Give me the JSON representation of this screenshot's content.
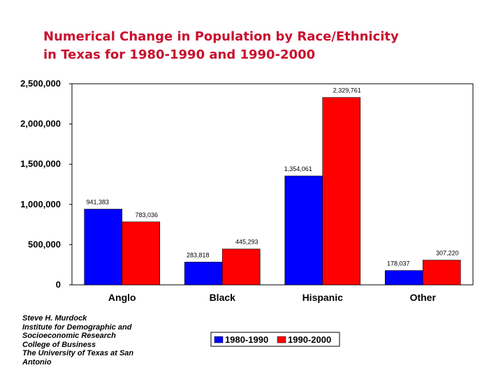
{
  "title_lines": [
    "Numerical Change in Population by Race/Ethnicity",
    "in Texas for 1980-1990 and 1990-2000"
  ],
  "credit_lines": [
    "Steve H. Murdock",
    "Institute for Demographic and",
    "Socioeconomic Research",
    "College of Business",
    "The University of Texas at San",
    "Antonio"
  ],
  "chart_data": {
    "type": "bar",
    "title": "Numerical Change in Population by Race/Ethnicity in Texas for 1980-1990 and 1990-2000",
    "categories": [
      "Anglo",
      "Black",
      "Hispanic",
      "Other"
    ],
    "series": [
      {
        "name": "1980-1990",
        "color": "#0000ff",
        "values": [
          941383,
          283818,
          1354061,
          178037
        ],
        "labels": [
          "941,383",
          "283,818",
          "1,354,061",
          "178,037"
        ]
      },
      {
        "name": "1990-2000",
        "color": "#ff0000",
        "values": [
          783036,
          445293,
          2329761,
          307220
        ],
        "labels": [
          "783,036",
          "445,293",
          "2,329,761",
          "307,220"
        ]
      }
    ],
    "ylim": [
      0,
      2500000
    ],
    "yticks": [
      0,
      500000,
      1000000,
      1500000,
      2000000,
      2500000
    ],
    "ytick_labels": [
      "0",
      "500,000",
      "1,000,000",
      "1,500,000",
      "2,000,000",
      "2,500,000"
    ],
    "legend_position": "bottom-right",
    "grid": false
  }
}
